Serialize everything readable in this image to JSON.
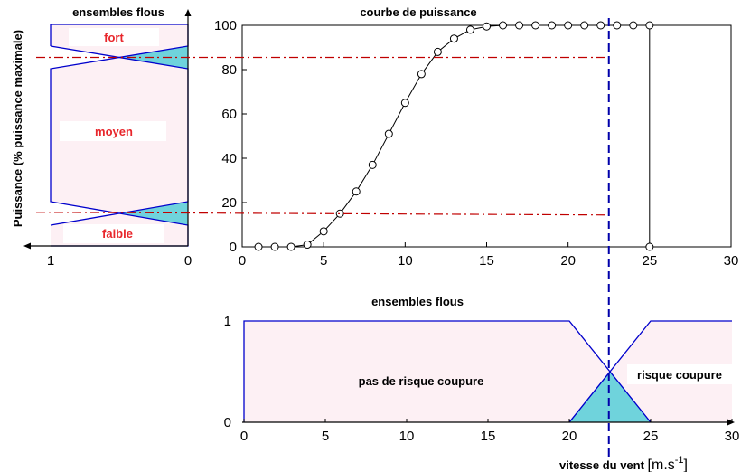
{
  "chart_data": [
    {
      "id": "power_curve",
      "type": "scatter",
      "title": "courbe de puissance",
      "xlim": [
        0,
        30
      ],
      "ylim": [
        0,
        100
      ],
      "xticks": [
        "0",
        "5",
        "10",
        "15",
        "20",
        "25",
        "30"
      ],
      "yticks": [
        "0",
        "20",
        "40",
        "60",
        "80",
        "100"
      ],
      "series": [
        {
          "x": [
            1,
            2,
            3,
            4,
            5,
            6,
            7,
            8,
            9,
            10,
            11,
            12,
            13,
            14,
            15,
            16,
            17,
            18,
            19,
            20,
            21,
            22,
            23,
            24,
            25,
            25
          ],
          "y": [
            0,
            0,
            0,
            1,
            7,
            15,
            25,
            37,
            51,
            65,
            78,
            88,
            94,
            98,
            99.5,
            100,
            100,
            100,
            100,
            100,
            100,
            100,
            100,
            100,
            100,
            0
          ]
        }
      ],
      "reference_lines": {
        "power_high": 85.5,
        "power_low": 15,
        "wind_cut": 22.5
      }
    },
    {
      "id": "power_fuzzy_sets",
      "type": "area",
      "title": "ensembles flous",
      "ylabel": "Puissance (% puissance maximale)",
      "xticks": [
        "1",
        "0"
      ],
      "sets": [
        {
          "label": "fort",
          "color": "#e8262b"
        },
        {
          "label": "moyen",
          "color": "#e8262b"
        },
        {
          "label": "faible",
          "color": "#e8262b"
        }
      ]
    },
    {
      "id": "wind_fuzzy_sets",
      "type": "area",
      "title": "ensembles flous",
      "xlabel": "vitesse du vent [m.s-1]",
      "xlabel_parts": {
        "main": "vitesse du vent ",
        "unit": "[m.s",
        "sup": "-1",
        "close": "]"
      },
      "xlim": [
        0,
        30
      ],
      "ylim": [
        0,
        1
      ],
      "xticks": [
        "0",
        "5",
        "10",
        "15",
        "20",
        "25",
        "30"
      ],
      "yticks": [
        "0",
        "1"
      ],
      "sets": [
        {
          "label": "pas de risque coupure",
          "points": [
            [
              0,
              0
            ],
            [
              0,
              1
            ],
            [
              20,
              1
            ],
            [
              25,
              0
            ]
          ]
        },
        {
          "label": "risque coupure",
          "points": [
            [
              20,
              0
            ],
            [
              25,
              1
            ],
            [
              30,
              1
            ]
          ]
        }
      ]
    }
  ],
  "colors": {
    "frame": "#0000cc",
    "fill": "#fdf0f4",
    "cyan": "#6fd3dc",
    "dashdot": "#c00000"
  }
}
